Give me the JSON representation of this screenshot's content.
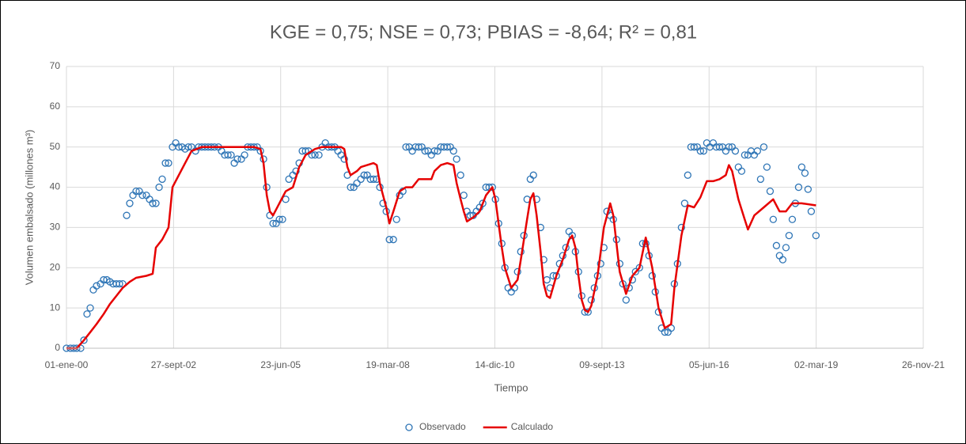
{
  "chart_data": {
    "type": "scatter-line",
    "title": "KGE = 0,75; NSE = 0,73; PBIAS = -8,64; R² = 0,81",
    "xlabel": "Tiempo",
    "ylabel": "Volumen embalsado (millones m³)",
    "xlim": [
      36526,
      44526
    ],
    "xticks": [
      {
        "value": 36526,
        "label": "01-ene-00"
      },
      {
        "value": 37526,
        "label": "27-sept-02"
      },
      {
        "value": 38526,
        "label": "23-jun-05"
      },
      {
        "value": 39526,
        "label": "19-mar-08"
      },
      {
        "value": 40526,
        "label": "14-dic-10"
      },
      {
        "value": 41526,
        "label": "09-sept-13"
      },
      {
        "value": 42526,
        "label": "05-jun-16"
      },
      {
        "value": 43526,
        "label": "02-mar-19"
      },
      {
        "value": 44526,
        "label": "26-nov-21"
      }
    ],
    "ylim": [
      0,
      70
    ],
    "yticks": [
      0,
      10,
      20,
      30,
      40,
      50,
      60,
      70
    ],
    "grid": true,
    "legend": "bottom",
    "series": [
      {
        "name": "Observado",
        "type": "scatter",
        "color": "#2e75b6",
        "x": [
          36526,
          36563,
          36593,
          36622,
          36659,
          36689,
          36718,
          36748,
          36777,
          36807,
          36844,
          36873,
          36903,
          36932,
          36962,
          36992,
          37021,
          37051,
          37088,
          37117,
          37147,
          37176,
          37206,
          37235,
          37272,
          37302,
          37331,
          37361,
          37391,
          37420,
          37450,
          37479,
          37516,
          37546,
          37575,
          37605,
          37634,
          37664,
          37694,
          37731,
          37760,
          37790,
          37819,
          37849,
          37878,
          37908,
          37945,
          37974,
          38004,
          38034,
          38063,
          38093,
          38122,
          38159,
          38189,
          38218,
          38248,
          38277,
          38307,
          38337,
          38366,
          38396,
          38425,
          38455,
          38484,
          38514,
          38543,
          38573,
          38603,
          38640,
          38669,
          38699,
          38728,
          38758,
          38787,
          38817,
          38846,
          38883,
          38913,
          38943,
          38972,
          39002,
          39031,
          39061,
          39090,
          39120,
          39149,
          39179,
          39209,
          39238,
          39275,
          39305,
          39334,
          39364,
          39393,
          39423,
          39452,
          39482,
          39512,
          39541,
          39578,
          39608,
          39637,
          39667,
          39696,
          39726,
          39755,
          39785,
          39815,
          39844,
          39874,
          39903,
          39933,
          39962,
          39992,
          40021,
          40051,
          40081,
          40110,
          40140,
          40169,
          40206,
          40236,
          40265,
          40295,
          40324,
          40354,
          40384,
          40413,
          40443,
          40472,
          40502,
          40531,
          40561,
          40591,
          40620,
          40650,
          40679,
          40709,
          40738,
          40768,
          40797,
          40827,
          40857,
          40886,
          40916,
          40953,
          40982,
          41012,
          41041,
          41071,
          41100,
          41130,
          41160,
          41189,
          41219,
          41248,
          41278,
          41307,
          41337,
          41366,
          41396,
          41426,
          41455,
          41485,
          41514,
          41544,
          41573,
          41603,
          41632,
          41662,
          41692,
          41721,
          41751,
          41780,
          41810,
          41839,
          41876,
          41906,
          41935,
          41965,
          41995,
          42024,
          42054,
          42083,
          42113,
          42142,
          42172,
          42202,
          42231,
          42268,
          42298,
          42327,
          42357,
          42386,
          42416,
          42445,
          42475,
          42505,
          42534,
          42564,
          42593,
          42623,
          42652,
          42682,
          42711,
          42741,
          42771,
          42800,
          42830,
          42859,
          42889,
          42918,
          42948,
          42977,
          43007,
          43037,
          43066,
          43096,
          43125,
          43155,
          43184,
          43214,
          43244,
          43273,
          43303,
          43332,
          43362,
          43391,
          43421,
          43450,
          43480,
          43524
        ],
        "values": [
          0,
          0,
          0,
          0,
          0,
          2,
          8.5,
          10,
          14.5,
          15.5,
          16,
          17,
          17,
          16.5,
          16,
          16,
          16,
          16,
          33,
          36,
          38,
          39,
          39,
          38,
          38,
          37,
          36,
          36,
          40,
          42,
          46,
          46,
          50,
          51,
          50,
          50,
          49.5,
          50,
          50,
          49,
          50,
          50,
          50,
          50,
          50,
          50,
          50,
          49,
          48,
          48,
          48,
          46,
          47,
          47,
          48,
          50,
          50,
          50,
          50,
          49,
          47,
          40,
          33,
          31,
          31,
          32,
          32,
          37,
          42,
          43,
          44,
          46,
          49,
          49,
          49,
          48,
          48,
          48,
          50,
          51,
          50,
          50,
          50,
          49,
          48,
          47,
          43,
          40,
          40,
          41,
          42,
          43,
          43,
          42,
          42,
          42,
          40,
          36,
          34,
          27,
          27,
          32,
          38,
          39,
          50,
          50,
          49,
          50,
          50,
          50,
          49,
          49,
          48,
          49,
          49,
          50,
          50,
          50,
          50,
          49,
          47,
          43,
          38,
          34,
          33,
          33,
          34,
          35,
          36,
          40,
          40,
          40,
          37,
          31,
          26,
          20,
          15,
          14,
          15,
          19,
          24,
          28,
          37,
          42,
          43,
          37,
          30,
          22,
          17,
          15,
          18,
          18,
          21,
          23,
          25,
          29,
          28,
          24,
          19,
          13,
          9,
          9,
          12,
          15,
          18,
          21,
          25,
          34,
          33,
          32,
          27,
          21,
          16,
          12,
          15,
          17,
          19,
          20,
          26,
          26,
          23,
          18,
          14,
          9,
          5,
          4,
          4,
          5,
          16,
          21,
          30,
          36,
          43,
          50,
          50,
          50,
          49,
          49,
          51,
          50,
          51,
          50,
          50,
          50,
          49,
          50,
          50,
          49,
          45,
          44,
          48,
          48,
          49,
          48,
          49,
          42,
          50,
          45,
          39,
          32,
          25.5,
          23,
          22,
          25,
          28,
          32,
          36,
          40,
          45,
          43.5,
          39.5,
          34,
          28
        ]
      },
      {
        "name": "Calculado",
        "type": "line",
        "color": "#e60000",
        "x": [
          36526,
          36622,
          36689,
          36748,
          36807,
          36873,
          36932,
          36992,
          37051,
          37117,
          37176,
          37272,
          37331,
          37361,
          37420,
          37479,
          37516,
          37575,
          37634,
          37694,
          37790,
          37908,
          38093,
          38277,
          38337,
          38366,
          38396,
          38425,
          38455,
          38514,
          38573,
          38640,
          38699,
          38758,
          38846,
          38913,
          39002,
          39090,
          39120,
          39149,
          39179,
          39238,
          39275,
          39334,
          39393,
          39423,
          39452,
          39512,
          39541,
          39578,
          39637,
          39696,
          39755,
          39815,
          39874,
          39933,
          39962,
          40021,
          40081,
          40140,
          40169,
          40206,
          40236,
          40265,
          40324,
          40384,
          40443,
          40502,
          40531,
          40561,
          40591,
          40620,
          40679,
          40738,
          40768,
          40827,
          40857,
          40886,
          40916,
          40953,
          40982,
          41012,
          41041,
          41100,
          41160,
          41219,
          41248,
          41278,
          41307,
          41337,
          41366,
          41396,
          41426,
          41485,
          41544,
          41603,
          41632,
          41692,
          41751,
          41810,
          41876,
          41935,
          41995,
          42054,
          42113,
          42172,
          42202,
          42268,
          42327,
          42386,
          42445,
          42505,
          42564,
          42623,
          42682,
          42711,
          42741,
          42800,
          42859,
          42889,
          42948,
          43037,
          43125,
          43184,
          43244,
          43303,
          43391,
          43524
        ],
        "values": [
          0,
          0,
          2,
          4,
          6,
          8.5,
          11,
          13,
          15,
          16.5,
          17.5,
          18,
          18.5,
          25,
          27,
          30,
          40,
          43,
          46,
          49,
          50,
          50,
          50,
          50,
          49.5,
          46,
          38,
          34,
          33,
          36,
          39,
          40,
          45,
          48,
          49.5,
          50,
          50,
          50,
          49.5,
          45,
          43,
          44,
          45,
          45.5,
          46,
          45.5,
          41,
          35,
          31,
          34,
          39,
          40,
          40,
          42,
          42,
          42,
          44,
          45.5,
          46,
          45.5,
          41,
          37,
          34,
          31.5,
          32.5,
          34,
          38,
          40,
          37,
          31,
          25,
          20,
          15,
          17,
          22,
          32,
          37,
          38.5,
          33,
          24,
          16,
          13,
          12.5,
          18,
          22,
          27,
          28,
          25,
          18,
          12,
          9.5,
          9,
          10.5,
          18,
          30,
          36,
          33,
          19,
          13.5,
          18,
          20,
          27.5,
          20,
          10,
          5,
          6,
          15,
          28,
          35.5,
          35,
          37.5,
          41.5,
          41.5,
          42,
          43,
          45.5,
          44,
          37,
          32,
          29.5,
          33,
          35,
          37,
          34,
          34,
          36,
          36,
          35.5
        ]
      }
    ]
  }
}
